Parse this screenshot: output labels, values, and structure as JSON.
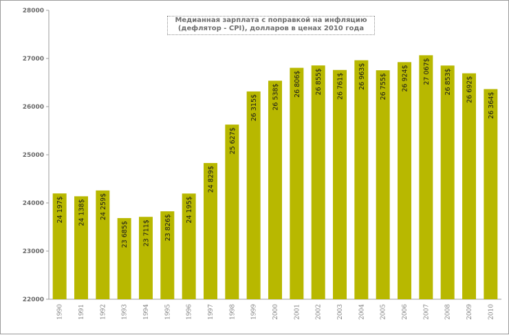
{
  "chart_data": {
    "type": "bar",
    "title_lines": [
      "Медианная зарплата с поправкой на инфляцию",
      "(дефлятор - CPI),  долларов  в ценах 2010  года"
    ],
    "xlabel": "",
    "ylabel": "",
    "ylim": [
      22000,
      28000
    ],
    "yticks": [
      "22000",
      "23000",
      "24000",
      "25000",
      "26000",
      "27000",
      "28000"
    ],
    "grid": "none",
    "legend": "none",
    "bar_color": "#b8b800",
    "categories": [
      "1990",
      "1991",
      "1992",
      "1993",
      "1994",
      "1995",
      "1996",
      "1997",
      "1998",
      "1999",
      "2000",
      "2001",
      "2002",
      "2003",
      "2004",
      "2005",
      "2006",
      "2007",
      "2008",
      "2009",
      "2010"
    ],
    "values": [
      24197,
      24138,
      24259,
      23685,
      23711,
      23826,
      24195,
      24829,
      25627,
      26315,
      26538,
      26806,
      26855,
      26761,
      26963,
      26755,
      26924,
      27067,
      26853,
      26692,
      26364
    ],
    "data_labels": [
      "24 197$",
      "24 138$",
      "24 259$",
      "23 685$",
      "23 711$",
      "23 826$",
      "24 195$",
      "24 829$",
      "25 627$",
      "26 315$",
      "26 538$",
      "26 806$",
      "26 855$",
      "26 761$",
      "26 963$",
      "26 755$",
      "26 924$",
      "27 067$",
      "26 853$",
      "26 692$",
      "26 364$"
    ]
  }
}
